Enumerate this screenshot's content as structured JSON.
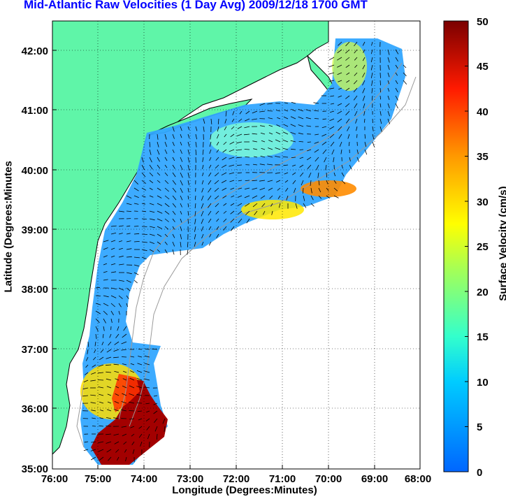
{
  "title": "Mid-Atlantic Raw Velocities (1 Day Avg) 2009/12/18 1700 GMT",
  "xlabel": "Longitude (Degrees:Minutes)",
  "ylabel": "Latitude (Degrees:Minutes",
  "colorbar": {
    "label": "Surface Velocity (cm/s)",
    "ticks": [
      "0",
      "5",
      "10",
      "15",
      "20",
      "25",
      "30",
      "35",
      "40",
      "45",
      "50"
    ],
    "range": [
      0,
      50
    ]
  },
  "xticks": [
    "76:00",
    "75:00",
    "74:00",
    "73:00",
    "72:00",
    "71:00",
    "70:00",
    "69:00",
    "68:00"
  ],
  "yticks": [
    "35:00",
    "36:00",
    "37:00",
    "38:00",
    "39:00",
    "40:00",
    "41:00",
    "42:00"
  ],
  "colors": {
    "land": "#5ff5a8",
    "title": "#0000ff",
    "coast": "#000000",
    "bathymetry": "#9a9a9a",
    "grid": "#000000"
  }
}
